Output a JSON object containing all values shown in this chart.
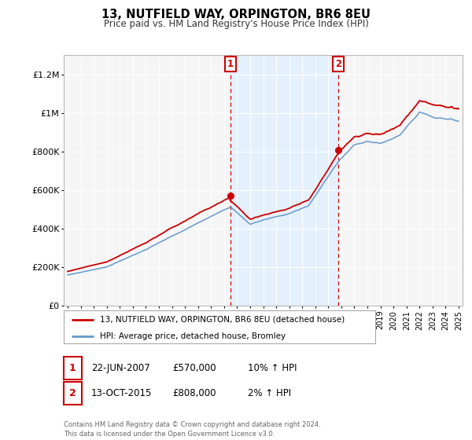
{
  "title": "13, NUTFIELD WAY, ORPINGTON, BR6 8EU",
  "subtitle": "Price paid vs. HM Land Registry's House Price Index (HPI)",
  "footer": "Contains HM Land Registry data © Crown copyright and database right 2024.\nThis data is licensed under the Open Government Licence v3.0.",
  "legend_line1": "13, NUTFIELD WAY, ORPINGTON, BR6 8EU (detached house)",
  "legend_line2": "HPI: Average price, detached house, Bromley",
  "sale1_date": "22-JUN-2007",
  "sale1_price": "£570,000",
  "sale1_hpi": "10% ↑ HPI",
  "sale2_date": "13-OCT-2015",
  "sale2_price": "£808,000",
  "sale2_hpi": "2% ↑ HPI",
  "ylim_min": 0,
  "ylim_max": 1300000,
  "yticks": [
    0,
    200000,
    400000,
    600000,
    800000,
    1000000,
    1200000
  ],
  "ytick_labels": [
    "£0",
    "£200K",
    "£400K",
    "£600K",
    "£800K",
    "£1M",
    "£1.2M"
  ],
  "x_start_year": 1995,
  "x_end_year": 2025,
  "sale1_year": 2007.47,
  "sale2_year": 2015.78,
  "red_color": "#cc0000",
  "blue_color": "#6699cc",
  "blue_fill": "#ddeeff",
  "background_color": "#ffffff",
  "plot_bg_color": "#f5f5f5",
  "grid_color": "#ffffff"
}
